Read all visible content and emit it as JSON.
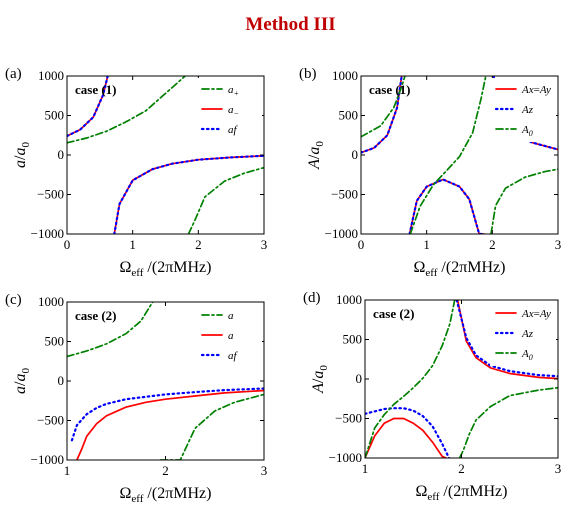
{
  "figure": {
    "title": "Method III"
  },
  "chart_data": [
    {
      "type": "line",
      "panel": "(a)",
      "case_label": "case (1)",
      "ylabel": "a/a0",
      "xlabel": "Ωeff /(2πMHz)",
      "xlim": [
        0,
        3
      ],
      "ylim": [
        -1000,
        1000
      ],
      "xticks": [
        0,
        1,
        2,
        3
      ],
      "yticks": [
        -1000,
        -500,
        0,
        500,
        1000
      ],
      "legend": "top-right",
      "series": [
        {
          "name": "a+",
          "color": "#008000",
          "style": "dashdot",
          "x": [
            0,
            0.3,
            0.6,
            0.9,
            1.2,
            1.5,
            1.8,
            1.85,
            1.95,
            2.1,
            2.4,
            2.7,
            3.0
          ],
          "y": [
            155,
            215,
            300,
            420,
            560,
            780,
            1000,
            -1000,
            -820,
            -530,
            -330,
            -230,
            -160
          ]
        },
        {
          "name": "a−",
          "color": "#ff0000",
          "style": "solid",
          "x": [
            0,
            0.2,
            0.4,
            0.55,
            0.62,
            0.72,
            0.8,
            1.0,
            1.3,
            1.6,
            2.0,
            2.5,
            3.0
          ],
          "y": [
            240,
            320,
            480,
            760,
            1000,
            -1000,
            -620,
            -320,
            -180,
            -110,
            -60,
            -30,
            -10
          ]
        },
        {
          "name": "af",
          "color": "#0000ff",
          "style": "dotted",
          "x": [
            0,
            0.2,
            0.4,
            0.55,
            0.62,
            0.72,
            0.8,
            1.0,
            1.3,
            1.6,
            2.0,
            2.5,
            3.0
          ],
          "y": [
            240,
            320,
            480,
            760,
            1000,
            -1000,
            -620,
            -320,
            -180,
            -110,
            -60,
            -30,
            -10
          ]
        }
      ]
    },
    {
      "type": "line",
      "panel": "(b)",
      "case_label": "case (1)",
      "ylabel": "A/a0",
      "xlabel": "Ωeff /(2πMHz)",
      "xlim": [
        0,
        3
      ],
      "ylim": [
        -1000,
        1000
      ],
      "xticks": [
        0,
        1,
        2,
        3
      ],
      "yticks": [
        -1000,
        -500,
        0,
        500,
        1000
      ],
      "legend": "top-right",
      "series": [
        {
          "name": "Ax=Ay",
          "color": "#ff0000",
          "style": "solid",
          "x": [
            0,
            0.2,
            0.4,
            0.55,
            0.62,
            0.74,
            0.85,
            1.0,
            1.25,
            1.5,
            1.65,
            1.8,
            1.87,
            2.02,
            2.1,
            2.3,
            2.6,
            3.0
          ],
          "y": [
            30,
            90,
            250,
            600,
            1000,
            -1000,
            -580,
            -400,
            -310,
            -400,
            -560,
            -1000,
            -1000,
            1000,
            580,
            300,
            160,
            70
          ]
        },
        {
          "name": "Az",
          "color": "#0000ff",
          "style": "dotted",
          "x": [
            0,
            0.2,
            0.4,
            0.55,
            0.62,
            0.74,
            0.85,
            1.0,
            1.25,
            1.5,
            1.65,
            1.8,
            1.87,
            2.02,
            2.1,
            2.3,
            2.6,
            3.0
          ],
          "y": [
            30,
            90,
            250,
            600,
            1000,
            -1000,
            -580,
            -400,
            -310,
            -400,
            -560,
            -1000,
            -1000,
            1000,
            580,
            300,
            160,
            70
          ]
        },
        {
          "name": "A0",
          "color": "#008000",
          "style": "dashdot",
          "x": [
            0,
            0.3,
            0.5,
            0.6,
            0.67,
            0.75,
            0.9,
            1.1,
            1.3,
            1.5,
            1.7,
            1.83,
            1.9,
            1.98,
            2.05,
            2.2,
            2.5,
            2.8,
            3.0
          ],
          "y": [
            230,
            370,
            600,
            820,
            1000,
            -1000,
            -650,
            -380,
            -200,
            -20,
            280,
            720,
            1000,
            -1000,
            -640,
            -420,
            -280,
            -210,
            -180
          ]
        }
      ]
    },
    {
      "type": "line",
      "panel": "(c)",
      "case_label": "case (2)",
      "ylabel": "a/a0",
      "xlabel": "Ωeff /(2πMHz)",
      "xlim": [
        1,
        3
      ],
      "ylim": [
        -1000,
        1000
      ],
      "xticks": [
        1,
        2,
        3
      ],
      "yticks": [
        -1000,
        -500,
        0,
        500,
        1000
      ],
      "legend": "top-right",
      "series": [
        {
          "name": "a",
          "color": "#008000",
          "style": "dashdot",
          "x": [
            1.0,
            1.2,
            1.4,
            1.6,
            1.75,
            1.87,
            1.95,
            2.02,
            2.15,
            2.3,
            2.5,
            2.7,
            2.85,
            3.0
          ],
          "y": [
            310,
            380,
            470,
            600,
            760,
            1000,
            -1000,
            -1000,
            -1000,
            -600,
            -380,
            -270,
            -220,
            -170
          ]
        },
        {
          "name": "a",
          "color": "#ff0000",
          "style": "solid",
          "x": [
            1.1,
            1.15,
            1.2,
            1.3,
            1.4,
            1.6,
            1.8,
            2.0,
            2.3,
            2.6,
            3.0
          ],
          "y": [
            -1000,
            -860,
            -700,
            -540,
            -440,
            -330,
            -270,
            -230,
            -190,
            -150,
            -120
          ]
        },
        {
          "name": "af",
          "color": "#0000ff",
          "style": "dotted",
          "x": [
            1.05,
            1.1,
            1.2,
            1.3,
            1.4,
            1.6,
            1.8,
            2.0,
            2.3,
            2.6,
            3.0
          ],
          "y": [
            -750,
            -560,
            -420,
            -340,
            -290,
            -230,
            -200,
            -170,
            -140,
            -115,
            -95
          ]
        }
      ]
    },
    {
      "type": "line",
      "panel": "(d)",
      "case_label": "case (2)",
      "ylabel": "A/a0",
      "xlabel": "Ωeff /(2πMHz)",
      "xlim": [
        1,
        3
      ],
      "ylim": [
        -1000,
        1000
      ],
      "xticks": [
        1,
        2,
        3
      ],
      "yticks": [
        -1000,
        -500,
        0,
        500,
        1000
      ],
      "legend": "top-right",
      "series": [
        {
          "name": "Ax=Ay",
          "color": "#ff0000",
          "style": "solid",
          "x": [
            1.0,
            1.1,
            1.2,
            1.3,
            1.4,
            1.5,
            1.6,
            1.7,
            1.8,
            1.84,
            1.96,
            2.05,
            2.15,
            2.3,
            2.5,
            2.8,
            3.0
          ],
          "y": [
            -1000,
            -720,
            -560,
            -500,
            -500,
            -560,
            -650,
            -800,
            -980,
            -1000,
            1000,
            480,
            270,
            140,
            70,
            20,
            5
          ]
        },
        {
          "name": "Az",
          "color": "#0000ff",
          "style": "dotted",
          "x": [
            1.0,
            1.1,
            1.2,
            1.3,
            1.4,
            1.5,
            1.6,
            1.7,
            1.8,
            1.87,
            1.95,
            2.05,
            2.15,
            2.3,
            2.5,
            2.8,
            3.0
          ],
          "y": [
            -440,
            -410,
            -380,
            -370,
            -370,
            -400,
            -470,
            -600,
            -820,
            -1000,
            1000,
            520,
            300,
            170,
            100,
            50,
            35
          ]
        },
        {
          "name": "A0",
          "color": "#008000",
          "style": "dashdot",
          "x": [
            1.0,
            1.1,
            1.2,
            1.3,
            1.4,
            1.5,
            1.6,
            1.7,
            1.8,
            1.88,
            1.93,
            1.98,
            2.02,
            2.08,
            2.15,
            2.3,
            2.5,
            2.8,
            3.0
          ],
          "y": [
            -1000,
            -620,
            -450,
            -320,
            -220,
            -110,
            10,
            170,
            420,
            700,
            1000,
            -1000,
            -900,
            -700,
            -520,
            -350,
            -210,
            -140,
            -110
          ]
        }
      ]
    }
  ]
}
